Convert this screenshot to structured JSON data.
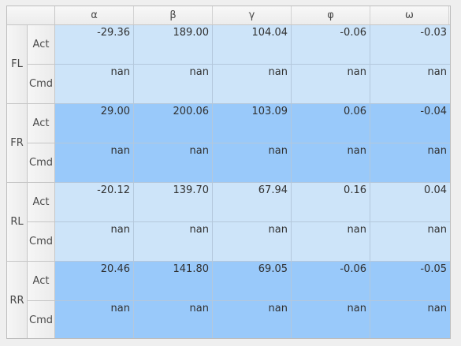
{
  "columns": [
    "α",
    "β",
    "γ",
    "φ",
    "ω"
  ],
  "groups": [
    {
      "label": "FL",
      "rows": [
        {
          "label": "Act",
          "values": [
            "-29.36",
            "189.00",
            "104.04",
            "-0.06",
            "-0.03"
          ]
        },
        {
          "label": "Cmd",
          "values": [
            "nan",
            "nan",
            "nan",
            "nan",
            "nan"
          ]
        }
      ]
    },
    {
      "label": "FR",
      "rows": [
        {
          "label": "Act",
          "values": [
            "29.00",
            "200.06",
            "103.09",
            "0.06",
            "-0.04"
          ]
        },
        {
          "label": "Cmd",
          "values": [
            "nan",
            "nan",
            "nan",
            "nan",
            "nan"
          ]
        }
      ]
    },
    {
      "label": "RL",
      "rows": [
        {
          "label": "Act",
          "values": [
            "-20.12",
            "139.70",
            "67.94",
            "0.16",
            "0.04"
          ]
        },
        {
          "label": "Cmd",
          "values": [
            "nan",
            "nan",
            "nan",
            "nan",
            "nan"
          ]
        }
      ]
    },
    {
      "label": "RR",
      "rows": [
        {
          "label": "Act",
          "values": [
            "20.46",
            "141.80",
            "69.05",
            "-0.06",
            "-0.05"
          ]
        },
        {
          "label": "Cmd",
          "values": [
            "nan",
            "nan",
            "nan",
            "nan",
            "nan"
          ]
        }
      ]
    }
  ],
  "colors": {
    "row_light": "#cde4f9",
    "row_dark": "#99c9fa",
    "header_bg": "#f0f0f0"
  }
}
